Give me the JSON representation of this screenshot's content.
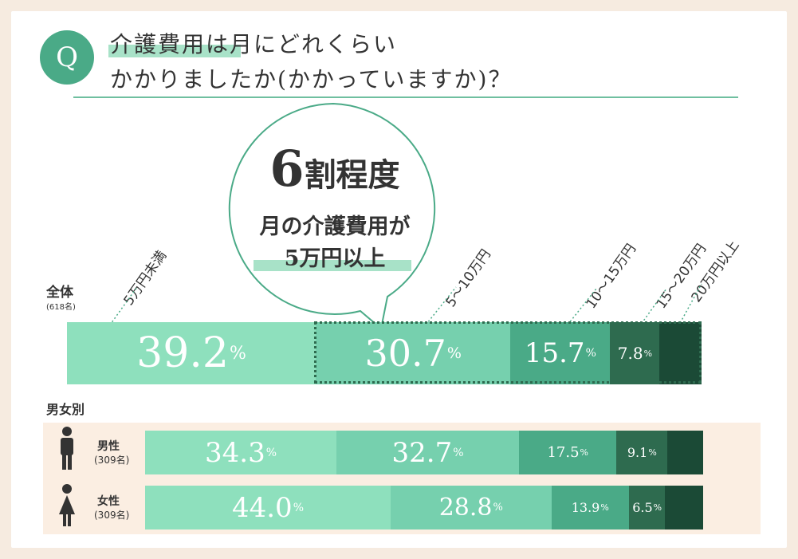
{
  "question": {
    "badge": "Q",
    "line1": "介護費用は月にどれくらい",
    "line2": "かかりましたか(かかっていますか)？"
  },
  "callout": {
    "big_number": "6",
    "big_suffix": "割程度",
    "line1": "月の介護費用が",
    "line2": "5万円以上"
  },
  "colors": {
    "c1": "#8ee0bd",
    "c2": "#76d0ae",
    "c3": "#4aaa87",
    "c4": "#2e6b4f",
    "c5": "#1b4a36",
    "accent": "#4aaa87"
  },
  "chart_data": {
    "type": "bar",
    "stacked": "horizontal-100%",
    "categories": [
      "5万円未満",
      "5〜10万円",
      "10〜15万円",
      "15〜20万円",
      "20万円以上"
    ],
    "groups": {
      "overall": {
        "label": "全体",
        "sub": "(618名)"
      },
      "section_label": "男女別",
      "male": {
        "label": "男性",
        "sub": "(309名)"
      },
      "female": {
        "label": "女性",
        "sub": "(309名)"
      }
    },
    "series": [
      {
        "key": "overall",
        "values": [
          39.2,
          30.7,
          15.7,
          7.8,
          6.6
        ],
        "labels": [
          "39.2",
          "30.7",
          "15.7",
          "7.8",
          ""
        ]
      },
      {
        "key": "male",
        "values": [
          34.3,
          32.7,
          17.5,
          9.1,
          6.4
        ],
        "labels": [
          "34.3",
          "32.7",
          "17.5",
          "9.1",
          ""
        ]
      },
      {
        "key": "female",
        "values": [
          44.0,
          28.8,
          13.9,
          6.5,
          6.8
        ],
        "labels": [
          "44.0",
          "28.8",
          "13.9",
          "6.5",
          ""
        ]
      }
    ],
    "unit": "%"
  }
}
